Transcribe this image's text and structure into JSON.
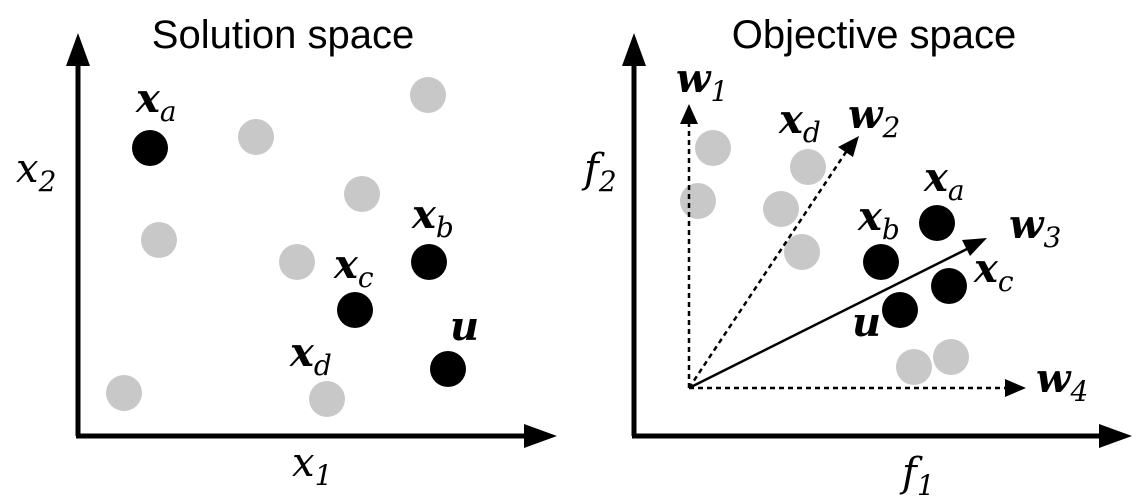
{
  "colors": {
    "highlight": "#000000",
    "other": "#c8c8c8",
    "background": "#ffffff"
  },
  "panels": {
    "solution": {
      "title": "Solution space",
      "x_axis": {
        "base": "x",
        "sub": "1"
      },
      "y_axis": {
        "base": "x",
        "sub": "2"
      },
      "labels": {
        "xa": {
          "base": "x",
          "sub": "a"
        },
        "xb": {
          "base": "x",
          "sub": "b"
        },
        "xc": {
          "base": "x",
          "sub": "c"
        },
        "xd": {
          "base": "x",
          "sub": "d"
        },
        "u": {
          "base": "u",
          "sub": ""
        }
      }
    },
    "objective": {
      "title": "Objective space",
      "x_axis": {
        "base": "f",
        "sub": "1"
      },
      "y_axis": {
        "base": "f",
        "sub": "2"
      },
      "weights": {
        "w1": {
          "base": "w",
          "sub": "1"
        },
        "w2": {
          "base": "w",
          "sub": "2"
        },
        "w3": {
          "base": "w",
          "sub": "3"
        },
        "w4": {
          "base": "w",
          "sub": "4"
        }
      },
      "labels": {
        "xa": {
          "base": "x",
          "sub": "a"
        },
        "xb": {
          "base": "x",
          "sub": "b"
        },
        "xc": {
          "base": "x",
          "sub": "c"
        },
        "xd": {
          "base": "x",
          "sub": "d"
        },
        "u": {
          "base": "u",
          "sub": ""
        }
      }
    }
  }
}
